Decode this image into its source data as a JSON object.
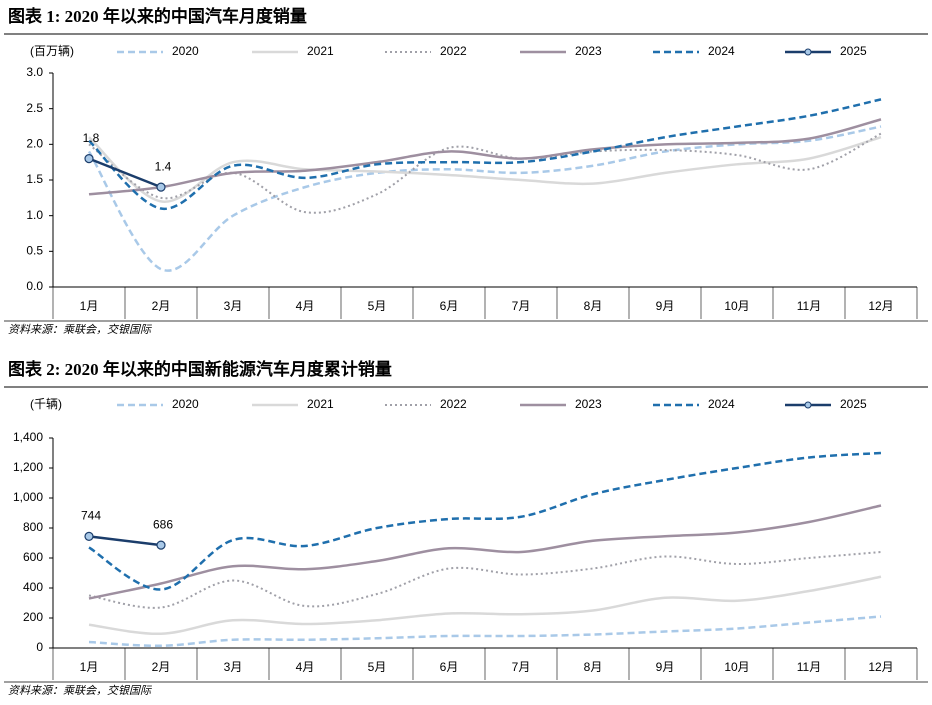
{
  "chart_data": [
    {
      "type": "line",
      "title": "图表 1: 2020 年以来的中国汽车月度销量",
      "y_label": "(百万辆)",
      "categories": [
        "1月",
        "2月",
        "3月",
        "4月",
        "5月",
        "6月",
        "7月",
        "8月",
        "9月",
        "10月",
        "11月",
        "12月"
      ],
      "ylim": [
        0,
        3
      ],
      "yticks": [
        {
          "value": 0,
          "label": "0.0"
        },
        0.5,
        {
          "value": 1,
          "label": "1.0"
        },
        1.5,
        {
          "value": 2,
          "label": "2.0"
        },
        2.5,
        {
          "value": 3,
          "label": "3.0"
        }
      ],
      "series": [
        {
          "name": "2020",
          "color": "#a9c9e8",
          "style": "dashed",
          "values": [
            1.9,
            0.25,
            1.0,
            1.4,
            1.6,
            1.65,
            1.6,
            1.7,
            1.9,
            2.0,
            2.05,
            2.25
          ]
        },
        {
          "name": "2021",
          "color": "#d9d9d9",
          "style": "solid",
          "values": [
            2.1,
            1.2,
            1.75,
            1.65,
            1.62,
            1.57,
            1.5,
            1.45,
            1.6,
            1.72,
            1.8,
            2.1
          ]
        },
        {
          "name": "2022",
          "color": "#a0a0a8",
          "style": "dotted",
          "values": [
            2.0,
            1.25,
            1.6,
            1.05,
            1.3,
            1.95,
            1.8,
            1.9,
            1.92,
            1.85,
            1.65,
            2.15
          ]
        },
        {
          "name": "2023",
          "color": "#9e8fa0",
          "style": "solid",
          "values": [
            1.3,
            1.4,
            1.6,
            1.63,
            1.75,
            1.9,
            1.8,
            1.93,
            2.0,
            2.02,
            2.08,
            2.35
          ]
        },
        {
          "name": "2024",
          "color": "#1f6fad",
          "style": "dashed",
          "values": [
            2.05,
            1.1,
            1.7,
            1.53,
            1.72,
            1.75,
            1.75,
            1.9,
            2.1,
            2.25,
            2.4,
            2.63
          ]
        },
        {
          "name": "2025",
          "color": "#1b3d6b",
          "style": "solid",
          "marker": true,
          "data_labels": true,
          "values": [
            1.8,
            1.4,
            null,
            null,
            null,
            null,
            null,
            null,
            null,
            null,
            null,
            null
          ]
        }
      ],
      "source": "资料来源：乘联会，交银国际"
    },
    {
      "type": "line",
      "title": "图表 2: 2020 年以来的中国新能源汽车月度累计销量",
      "y_label": "(千辆)",
      "categories": [
        "1月",
        "2月",
        "3月",
        "4月",
        "5月",
        "6月",
        "7月",
        "8月",
        "9月",
        "10月",
        "11月",
        "12月"
      ],
      "ylim": [
        0,
        1400
      ],
      "yticks": [
        0,
        200,
        400,
        600,
        800,
        {
          "value": 1000,
          "label": "1,000"
        },
        {
          "value": 1200,
          "label": "1,200"
        },
        {
          "value": 1400,
          "label": "1,400"
        }
      ],
      "series": [
        {
          "name": "2020",
          "color": "#a9c9e8",
          "style": "dashed",
          "values": [
            40,
            15,
            55,
            55,
            65,
            80,
            80,
            90,
            110,
            130,
            170,
            210
          ]
        },
        {
          "name": "2021",
          "color": "#d9d9d9",
          "style": "solid",
          "values": [
            155,
            95,
            185,
            160,
            185,
            230,
            225,
            250,
            335,
            315,
            380,
            475
          ]
        },
        {
          "name": "2022",
          "color": "#a0a0a8",
          "style": "dotted",
          "values": [
            350,
            270,
            450,
            280,
            360,
            530,
            490,
            530,
            610,
            560,
            600,
            640
          ]
        },
        {
          "name": "2023",
          "color": "#9e8fa0",
          "style": "solid",
          "values": [
            330,
            430,
            545,
            525,
            580,
            665,
            640,
            715,
            745,
            770,
            840,
            950
          ]
        },
        {
          "name": "2024",
          "color": "#1f6fad",
          "style": "dashed",
          "values": [
            670,
            390,
            720,
            680,
            800,
            860,
            875,
            1025,
            1120,
            1200,
            1270,
            1300
          ]
        },
        {
          "name": "2025",
          "color": "#1b3d6b",
          "style": "solid",
          "marker": true,
          "data_labels": true,
          "values": [
            744,
            686,
            null,
            null,
            null,
            null,
            null,
            null,
            null,
            null,
            null,
            null
          ]
        }
      ],
      "source": "资料来源：乘联会，交银国际"
    }
  ]
}
